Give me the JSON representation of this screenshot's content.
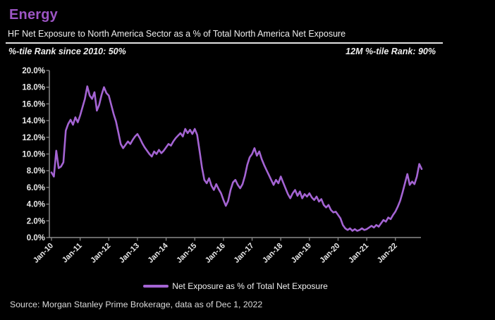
{
  "header": {
    "title": "Energy",
    "subtitle": "HF Net Exposure to North America Sector as a % of Total North America Net Exposure",
    "rank_left": "%-tile Rank since 2010: 50%",
    "rank_right": "12M %-tile Rank: 90%"
  },
  "legend": {
    "label": "Net Exposure as % of Total Net Exposure"
  },
  "source": "Source: Morgan Stanley Prime Brokerage, data as of Dec 1, 2022",
  "colors": {
    "background": "#000000",
    "title_purple": "#9d55c5",
    "line_purple": "#a464d3",
    "axis_gray": "#8a8a8a",
    "tick_label_white": "#e9e9e9"
  },
  "chart_data": {
    "type": "line",
    "title": "HF Net Exposure to North America Sector as a % of Total North America Net Exposure",
    "xlabel": "",
    "ylabel": "",
    "ylim": [
      0,
      20
    ],
    "y_tick_step_pct": 2,
    "y_tick_labels": [
      "0.0%",
      "2.0%",
      "4.0%",
      "6.0%",
      "8.0%",
      "10.0%",
      "12.0%",
      "14.0%",
      "16.0%",
      "18.0%",
      "20.0%"
    ],
    "x_tick_labels": [
      "Jan-10",
      "Jan-11",
      "Jan-12",
      "Jan-13",
      "Jan-14",
      "Jan-15",
      "Jan-16",
      "Jan-17",
      "Jan-18",
      "Jan-19",
      "Jan-20",
      "Jan-21",
      "Jan-22"
    ],
    "x_tick_month_index": [
      0,
      12,
      24,
      36,
      48,
      60,
      72,
      84,
      96,
      108,
      120,
      132,
      144
    ],
    "frequency": "monthly",
    "x_start": "Jan-2010",
    "x_end": "Dec-2022",
    "grid": false,
    "legend_position": "bottom",
    "series": [
      {
        "name": "Net Exposure as % of Total Net Exposure",
        "values": [
          7.8,
          7.3,
          10.4,
          8.3,
          8.5,
          9.0,
          12.8,
          13.6,
          14.1,
          13.5,
          14.4,
          13.8,
          14.6,
          15.6,
          16.6,
          18.1,
          17.0,
          16.6,
          17.4,
          15.2,
          15.9,
          17.1,
          18.0,
          17.3,
          17.0,
          15.9,
          14.8,
          13.9,
          12.6,
          11.2,
          10.7,
          11.1,
          11.5,
          11.2,
          11.7,
          12.1,
          12.4,
          11.9,
          11.3,
          10.8,
          10.4,
          10.0,
          9.7,
          10.3,
          10.0,
          10.5,
          10.1,
          10.4,
          10.8,
          11.2,
          11.0,
          11.5,
          11.9,
          12.2,
          12.5,
          12.1,
          13.0,
          12.5,
          12.9,
          12.4,
          13.0,
          12.3,
          10.4,
          8.4,
          6.9,
          6.5,
          7.1,
          6.2,
          5.7,
          6.4,
          5.8,
          5.3,
          4.5,
          3.8,
          4.4,
          5.7,
          6.6,
          6.9,
          6.3,
          5.9,
          6.4,
          7.4,
          8.7,
          9.6,
          10.0,
          10.7,
          9.8,
          10.3,
          9.4,
          8.7,
          8.1,
          7.5,
          6.9,
          6.3,
          6.9,
          6.5,
          7.3,
          6.6,
          5.9,
          5.2,
          4.7,
          5.3,
          5.7,
          5.0,
          5.5,
          4.7,
          5.2,
          4.9,
          5.3,
          4.8,
          4.5,
          4.9,
          4.3,
          4.6,
          3.9,
          3.6,
          3.9,
          3.3,
          3.0,
          3.1,
          2.7,
          2.3,
          1.5,
          1.1,
          0.9,
          1.1,
          0.8,
          1.0,
          0.8,
          0.9,
          1.1,
          0.9,
          1.0,
          1.2,
          1.4,
          1.2,
          1.5,
          1.3,
          1.7,
          2.1,
          1.9,
          2.4,
          2.2,
          2.7,
          3.1,
          3.7,
          4.4,
          5.4,
          6.5,
          7.6,
          6.3,
          6.7,
          6.4,
          7.3,
          8.8,
          8.2
        ]
      }
    ]
  }
}
